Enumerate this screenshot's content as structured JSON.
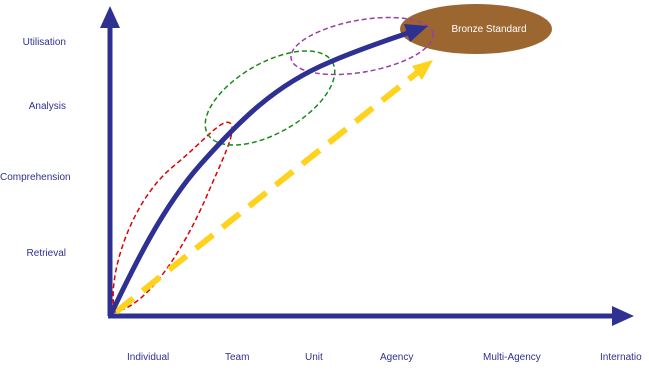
{
  "y_axis": {
    "levels": [
      "Utilisation",
      "Analysis",
      "Comprehension",
      "Retrieval"
    ]
  },
  "x_axis": {
    "levels": [
      "Individual",
      "Team",
      "Unit",
      "Agency",
      "Multi-Agency",
      "Internatio"
    ]
  },
  "target": {
    "label": "Bronze Standard",
    "color": "#9c6630"
  },
  "colors": {
    "axis": "#2e3192",
    "main_curve": "#2e3192",
    "dashed_arrow": "#ffd21e",
    "ellipse_red": "#e00000",
    "ellipse_green": "#1a8a1a",
    "ellipse_purple": "#9b3fa6",
    "label_text": "#2e3192"
  }
}
